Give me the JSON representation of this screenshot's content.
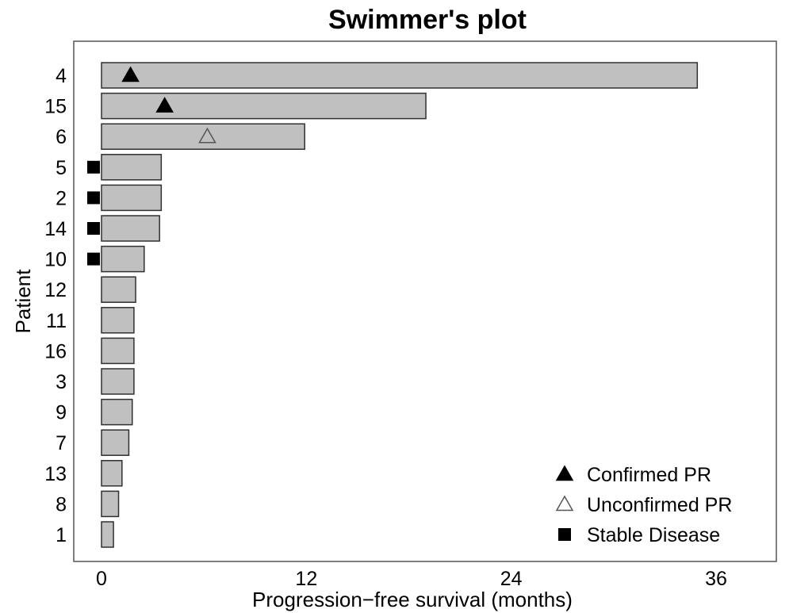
{
  "chart_data": {
    "type": "bar",
    "orientation": "horizontal",
    "title": "Swimmer's plot",
    "xlabel": "Progression−free survival (months)",
    "ylabel": "Patient",
    "xlim": [
      0,
      36
    ],
    "xticks": [
      "0",
      "12",
      "24",
      "36"
    ],
    "categories": [
      "4",
      "15",
      "6",
      "5",
      "2",
      "14",
      "10",
      "12",
      "11",
      "16",
      "3",
      "9",
      "7",
      "13",
      "8",
      "1"
    ],
    "values": [
      34.9,
      19.0,
      11.9,
      3.5,
      3.5,
      3.4,
      2.5,
      2.0,
      1.9,
      1.9,
      1.9,
      1.8,
      1.6,
      1.2,
      1.0,
      0.7
    ],
    "markers": [
      {
        "patient": "4",
        "type": "Confirmed PR",
        "x": 1.7
      },
      {
        "patient": "15",
        "type": "Confirmed PR",
        "x": 3.7
      },
      {
        "patient": "6",
        "type": "Unconfirmed PR",
        "x": 6.2
      },
      {
        "patient": "5",
        "type": "Stable Disease",
        "x": -0.5
      },
      {
        "patient": "2",
        "type": "Stable Disease",
        "x": -0.5
      },
      {
        "patient": "14",
        "type": "Stable Disease",
        "x": -0.5
      },
      {
        "patient": "10",
        "type": "Stable Disease",
        "x": -0.5
      }
    ],
    "legend": {
      "placement": "bottom-right",
      "entries": [
        {
          "label": "Confirmed PR",
          "symbol": "filled-triangle"
        },
        {
          "label": "Unconfirmed PR",
          "symbol": "open-triangle"
        },
        {
          "label": "Stable Disease",
          "symbol": "filled-square"
        }
      ]
    },
    "grid": false,
    "colors": {
      "bar_fill": "#c0c0c0",
      "bar_stroke": "#303030",
      "marker": "#000000"
    }
  }
}
